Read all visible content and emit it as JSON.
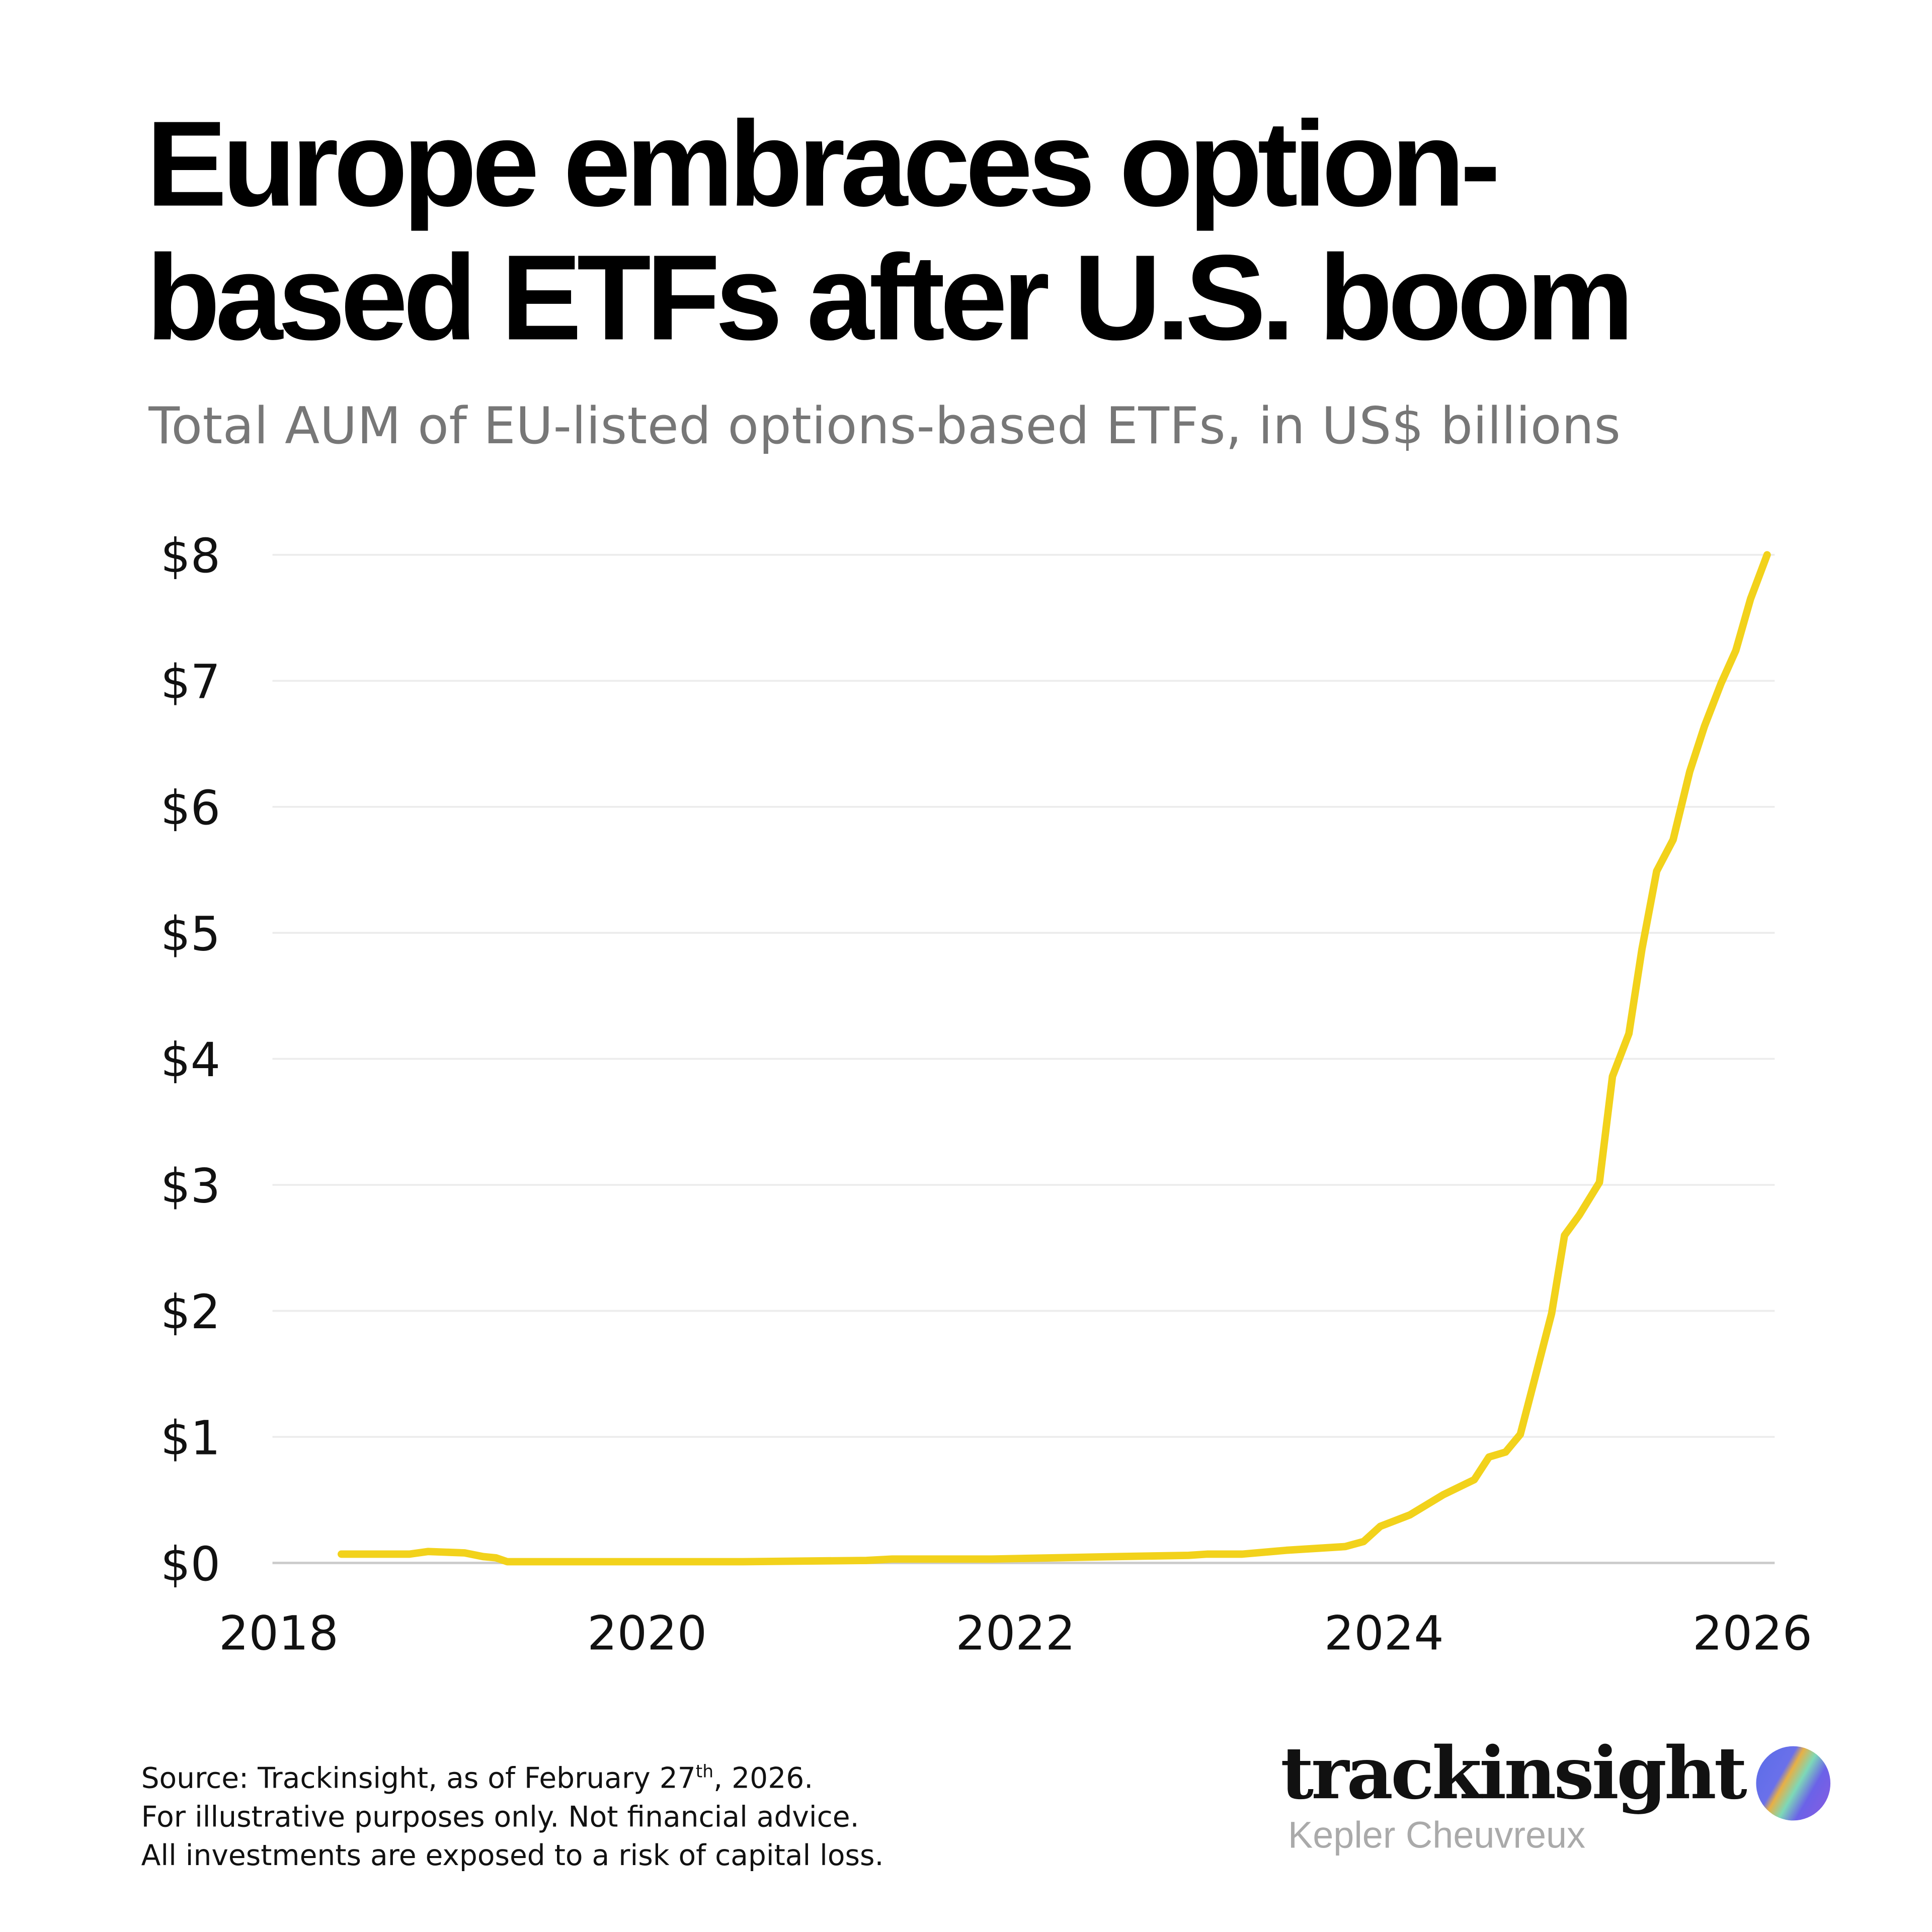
{
  "title": "Europe embraces option-based ETFs after U.S. boom",
  "subtitle": "Total AUM of EU-listed options-based ETFs, in US$ billions",
  "footer": {
    "line1_pre": "Source: Trackinsight, as of February 27",
    "line1_sup": "th",
    "line1_post": ", 2026.",
    "line2": "For illustrative purposes only. Not financial advice.",
    "line3": "All investments are exposed to a risk of capital loss."
  },
  "brand": {
    "name": "trackinsight",
    "sub": "Kepler Cheuvreux",
    "logo_icon": "gradient-orb-icon"
  },
  "colors": {
    "line": "#f2d21b",
    "grid": "#ececec",
    "axis": "#cccccc",
    "subtitle": "#777777"
  },
  "chart_data": {
    "type": "line",
    "title": "Europe embraces option-based ETFs after U.S. boom",
    "subtitle": "Total AUM of EU-listed options-based ETFs, in US$ billions",
    "xlim": [
      2018,
      2026
    ],
    "ylim": [
      0,
      8
    ],
    "x_ticks": [
      "2018",
      "2020",
      "2022",
      "2024",
      "2026"
    ],
    "x_tick_values": [
      2018,
      2020,
      2022,
      2024,
      2026
    ],
    "y_ticks": [
      "$0",
      "$1",
      "$2",
      "$3",
      "$4",
      "$5",
      "$6",
      "$7",
      "$8"
    ],
    "y_tick_values": [
      0,
      1,
      2,
      3,
      4,
      5,
      6,
      7,
      8
    ],
    "grid": "horizontal",
    "x": [
      2018.34,
      2018.71,
      2018.81,
      2019.01,
      2019.11,
      2019.18,
      2019.24,
      2020.52,
      2021.19,
      2021.33,
      2021.87,
      2022.54,
      2022.94,
      2023.04,
      2023.23,
      2023.47,
      2023.79,
      2023.89,
      2023.98,
      2024.14,
      2024.32,
      2024.49,
      2024.57,
      2024.66,
      2024.74,
      2024.82,
      2024.91,
      2024.98,
      2025.06,
      2025.17,
      2025.24,
      2025.33,
      2025.4,
      2025.48,
      2025.57,
      2025.66,
      2025.74,
      2025.83,
      2025.91,
      2025.99,
      2026.08
    ],
    "values": [
      0.07,
      0.07,
      0.09,
      0.08,
      0.05,
      0.04,
      0.01,
      0.01,
      0.02,
      0.03,
      0.03,
      0.05,
      0.06,
      0.07,
      0.07,
      0.1,
      0.13,
      0.17,
      0.29,
      0.38,
      0.54,
      0.66,
      0.84,
      0.88,
      1.02,
      1.47,
      1.98,
      2.6,
      2.76,
      3.02,
      3.86,
      4.2,
      4.87,
      5.49,
      5.74,
      6.28,
      6.64,
      6.98,
      7.24,
      7.65,
      8.0
    ]
  }
}
